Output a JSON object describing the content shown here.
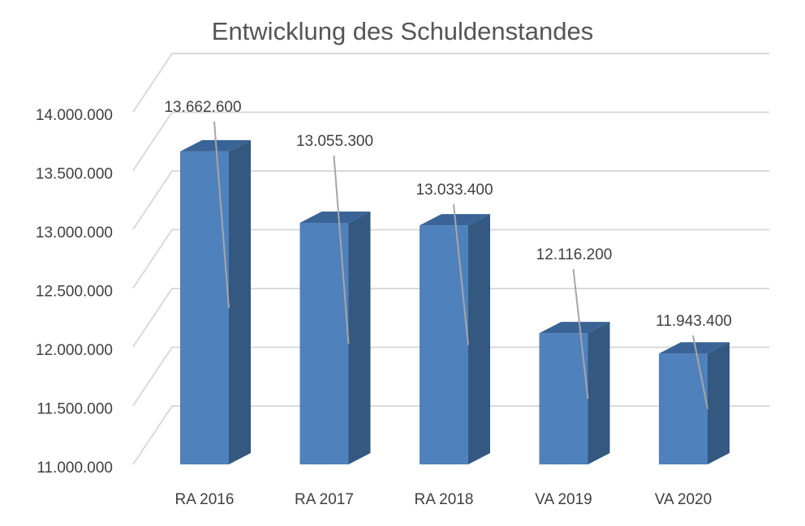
{
  "chart_data": {
    "type": "bar",
    "title": "Entwicklung des Schuldenstandes",
    "xlabel": "",
    "ylabel": "",
    "categories": [
      "RA 2016",
      "RA 2017",
      "RA 2018",
      "VA 2019",
      "VA 2020"
    ],
    "values": [
      13662600,
      13055300,
      13033400,
      12116200,
      11943400
    ],
    "value_labels": [
      "13.662.600",
      "13.055.300",
      "13.033.400",
      "12.116.200",
      "11.943.400"
    ],
    "ylim": [
      11000000,
      14000000
    ],
    "yticks": [
      11000000,
      11500000,
      12000000,
      12500000,
      13000000,
      13500000,
      14000000
    ],
    "ytick_labels": [
      "11.000.000",
      "11.500.000",
      "12.000.000",
      "12.500.000",
      "13.000.000",
      "13.500.000",
      "14.000.000"
    ],
    "grid": true,
    "legend": "none",
    "style": "3d-column",
    "colors": {
      "bar_front": "#4f81bd",
      "bar_side": "#34587f",
      "bar_top": "#3a6496",
      "grid": "#d9d9d9",
      "leader": "#a6a6a6"
    }
  }
}
